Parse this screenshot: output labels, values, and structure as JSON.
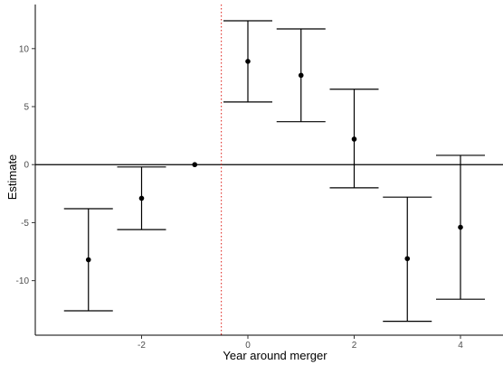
{
  "chart_data": {
    "type": "scatter",
    "subtype": "coefficient plot with error bars",
    "title": "",
    "xlabel": "Year around merger",
    "ylabel": "Estimate",
    "xlim": [
      -4,
      4.8
    ],
    "ylim": [
      -14.7,
      13.8
    ],
    "x_ticks": [
      -2,
      0,
      2,
      4
    ],
    "x_tick_labels": [
      "-2",
      "0",
      "2",
      "4"
    ],
    "y_ticks": [
      -10,
      -5,
      0,
      5,
      10
    ],
    "y_tick_labels": [
      "-10",
      "-5",
      "0",
      "5",
      "10"
    ],
    "grid": false,
    "legend": "none",
    "reference_lines": [
      {
        "orientation": "horizontal",
        "value": 0,
        "style": "solid",
        "color": "#000000"
      },
      {
        "orientation": "vertical",
        "value": -0.5,
        "style": "dotted",
        "color": "#e0302a"
      }
    ],
    "points": [
      {
        "x": -3,
        "y": -8.2,
        "lower": -12.6,
        "upper": -3.8
      },
      {
        "x": -2,
        "y": -2.9,
        "lower": -5.6,
        "upper": -0.2
      },
      {
        "x": -1,
        "y": 0.0,
        "lower": null,
        "upper": null
      },
      {
        "x": 0,
        "y": 8.9,
        "lower": 5.4,
        "upper": 12.4
      },
      {
        "x": 1,
        "y": 7.7,
        "lower": 3.7,
        "upper": 11.7
      },
      {
        "x": 2,
        "y": 2.2,
        "lower": -2.0,
        "upper": 6.5
      },
      {
        "x": 3,
        "y": -8.1,
        "lower": -13.5,
        "upper": -2.8
      },
      {
        "x": 4,
        "y": -5.4,
        "lower": -11.6,
        "upper": 0.8
      }
    ],
    "colors": {
      "points": "#000000",
      "errorbars": "#000000",
      "axis": "#000000",
      "ticks": "#4d4d4d"
    }
  }
}
